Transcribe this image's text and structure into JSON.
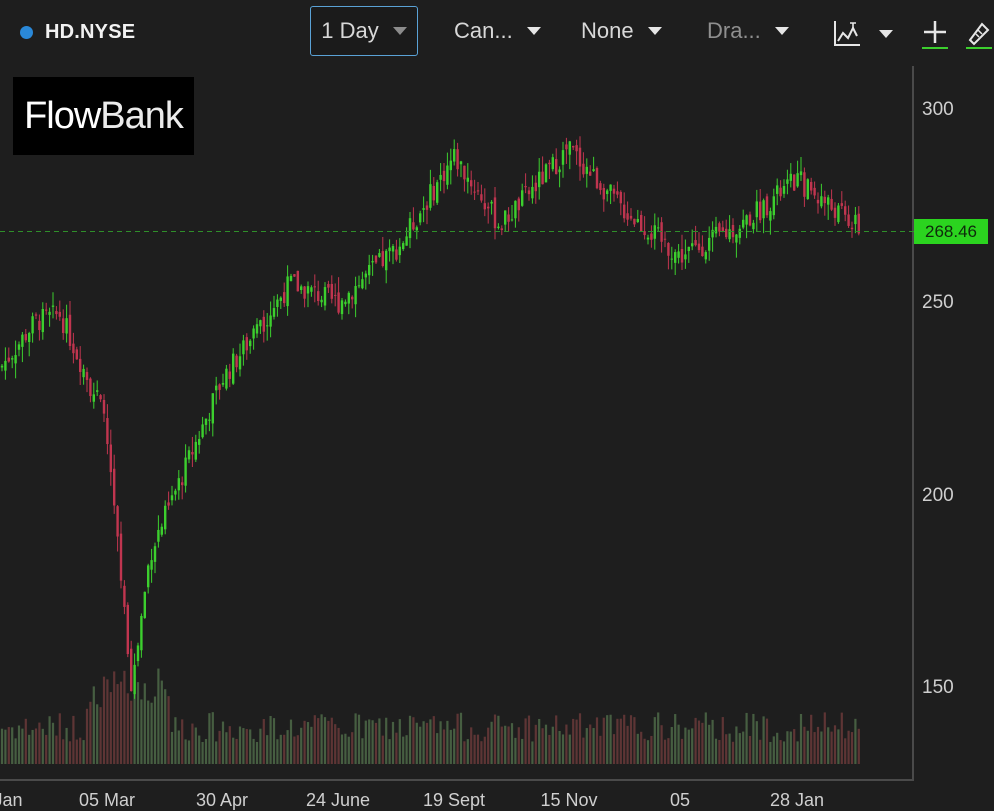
{
  "toolbar": {
    "symbol": "HD.NYSE",
    "period": "1 Day",
    "chart_type": "Can...",
    "indicator": "None",
    "drawing": "Dra...",
    "icons": [
      "chart-style-icon",
      "chart-style-dropdown-icon",
      "crosshair-plus-icon",
      "drawing-tools-icon"
    ]
  },
  "logo": {
    "part1": "Flow",
    "part2": "Bank"
  },
  "colors": {
    "up": "#3ccf2e",
    "down": "#c0354f",
    "last_price_bg": "#2bd41f",
    "accent": "#2a88d8"
  },
  "chart_data": {
    "type": "candlestick",
    "symbol": "HD.NYSE",
    "last_price": "268.46",
    "ylim": [
      132,
      305
    ],
    "yticks": [
      "300",
      "250",
      "200",
      "150"
    ],
    "xticks": [
      "Jan",
      "05 Mar",
      "30 Apr",
      "24 June",
      "19 Sept",
      "15 Nov",
      "05",
      "28 Jan"
    ],
    "grid": false,
    "approx_close_path": [
      [
        "Jan",
        233
      ],
      [
        "early Feb",
        245
      ],
      [
        "mid Feb",
        247
      ],
      [
        "05 Mar",
        220
      ],
      [
        "mid Mar",
        150
      ],
      [
        "end Mar",
        185
      ],
      [
        "30 Apr",
        230
      ],
      [
        "end May",
        255
      ],
      [
        "24 June",
        250
      ],
      [
        "Aug",
        265
      ],
      [
        "19 Sept",
        288
      ],
      [
        "Oct",
        270
      ],
      [
        "15 Nov",
        290
      ],
      [
        "Dec",
        275
      ],
      [
        "05",
        262
      ],
      [
        "Jan",
        270
      ],
      [
        "28 Jan",
        282
      ],
      [
        "Feb",
        268.46
      ]
    ]
  }
}
